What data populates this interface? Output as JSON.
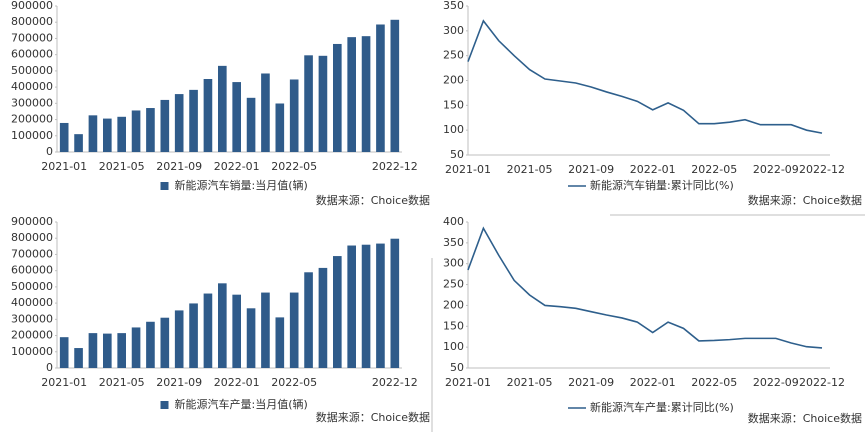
{
  "chart_data": [
    {
      "type": "bar",
      "categories": [
        "2021-01",
        null,
        null,
        null,
        "2021-05",
        null,
        null,
        null,
        "2021-09",
        null,
        null,
        null,
        "2022-01",
        null,
        null,
        null,
        "2022-05",
        null,
        null,
        null,
        null,
        null,
        null,
        "2022-12"
      ],
      "series": [
        {
          "name": "新能源汽车销量:当月值(辆)",
          "color": "#2f5b8a",
          "values": [
            179000,
            110000,
            226000,
            206000,
            217000,
            256000,
            271000,
            321000,
            357000,
            383000,
            450000,
            531000,
            431000,
            334000,
            484000,
            299000,
            447000,
            596000,
            593000,
            666000,
            708000,
            714000,
            786000,
            815000
          ]
        }
      ],
      "ylim": [
        0,
        900000
      ],
      "yticks": [
        0,
        100000,
        200000,
        300000,
        400000,
        500000,
        600000,
        700000,
        800000,
        900000
      ],
      "source": "数据来源：Choice数据"
    },
    {
      "type": "line",
      "categories": [
        "2021-01",
        null,
        null,
        null,
        "2021-05",
        null,
        null,
        null,
        "2021-09",
        null,
        null,
        null,
        "2022-01",
        null,
        null,
        null,
        "2022-05",
        null,
        null,
        null,
        "2022-09",
        null,
        null,
        "2022-12"
      ],
      "series": [
        {
          "name": "新能源汽车销量:累计同比(%)",
          "color": "#2e5f8c",
          "values": [
            238,
            320,
            280,
            250,
            222,
            203,
            199,
            195,
            187,
            177,
            168,
            158,
            141,
            155,
            140,
            113,
            113,
            116,
            121,
            111,
            111,
            111,
            100,
            94
          ]
        }
      ],
      "ylim": [
        50,
        350
      ],
      "yticks": [
        50,
        100,
        150,
        200,
        250,
        300,
        350
      ],
      "source": "数据来源：Choice数据"
    },
    {
      "type": "bar",
      "categories": [
        "2021-01",
        null,
        null,
        null,
        "2021-05",
        null,
        null,
        null,
        "2021-09",
        null,
        null,
        null,
        "2022-01",
        null,
        null,
        null,
        "2022-05",
        null,
        null,
        null,
        null,
        null,
        null,
        "2022-12"
      ],
      "series": [
        {
          "name": "新能源汽车产量:当月值(辆)",
          "color": "#2f5b8a",
          "values": [
            190000,
            123000,
            215000,
            212000,
            215000,
            250000,
            285000,
            310000,
            355000,
            398000,
            459000,
            522000,
            452000,
            368000,
            465000,
            312000,
            465000,
            590000,
            617000,
            690000,
            755000,
            760000,
            767000,
            797000
          ]
        }
      ],
      "ylim": [
        0,
        900000
      ],
      "yticks": [
        0,
        100000,
        200000,
        300000,
        400000,
        500000,
        600000,
        700000,
        800000,
        900000
      ],
      "source": "数据来源：Choice数据"
    },
    {
      "type": "line",
      "categories": [
        "2021-01",
        null,
        null,
        null,
        "2021-05",
        null,
        null,
        null,
        "2021-09",
        null,
        null,
        null,
        "2022-01",
        null,
        null,
        null,
        "2022-05",
        null,
        null,
        null,
        "2022-09",
        null,
        null,
        "2022-12"
      ],
      "series": [
        {
          "name": "新能源汽车产量:累计同比(%)",
          "color": "#2e5f8c",
          "values": [
            285,
            385,
            320,
            260,
            225,
            200,
            197,
            193,
            185,
            177,
            170,
            160,
            135,
            160,
            145,
            115,
            116,
            118,
            121,
            121,
            121,
            110,
            101,
            98
          ]
        }
      ],
      "ylim": [
        50,
        400
      ],
      "yticks": [
        50,
        100,
        150,
        200,
        250,
        300,
        350,
        400
      ],
      "source": "数据来源：Choice数据"
    }
  ]
}
